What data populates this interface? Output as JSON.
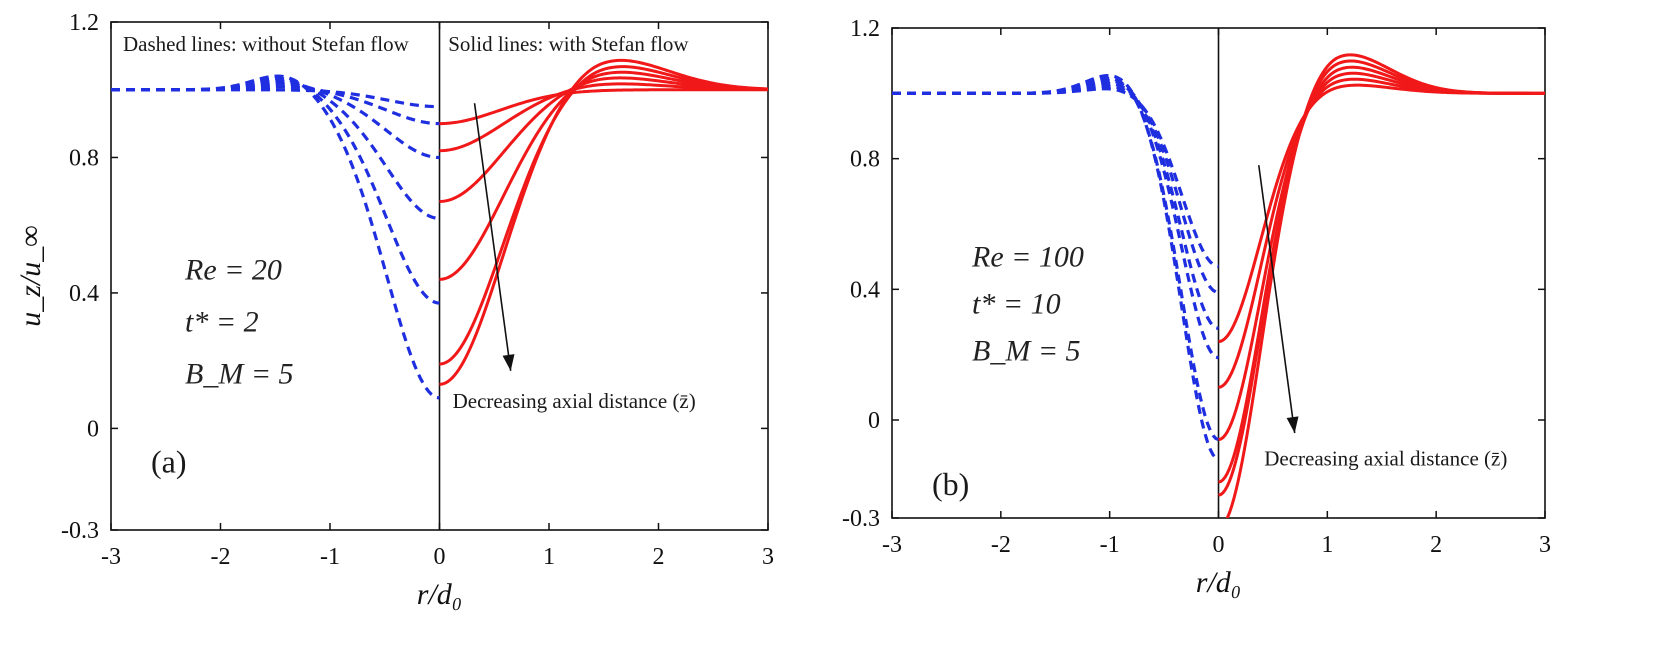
{
  "chart_data": [
    {
      "type": "line",
      "panel": "(a)",
      "xlabel": "r/d₀",
      "ylabel": "u_z/u_∞",
      "xlim": [
        -3,
        3
      ],
      "ylim": [
        -0.3,
        1.2
      ],
      "xticks": [
        "-3",
        "-2",
        "-1",
        "0",
        "1",
        "2",
        "3"
      ],
      "yticks": [
        "1.2",
        "0.8",
        "0.4",
        "0",
        "-0.3"
      ],
      "dashed_annotation": "Dashed lines: without Stefan flow",
      "solid_annotation": "Solid lines: with Stefan flow",
      "arrow_annotation": "Decreasing axial distance (z̄)",
      "params": [
        "Re = 20",
        "t* = 2",
        "B_M = 5"
      ],
      "colors": {
        "dashed": "#1f2fe0",
        "solid": "#f01818"
      },
      "dashed_centerline_values": [
        0.95,
        0.9,
        0.8,
        0.62,
        0.37,
        0.09
      ],
      "dashed_bump_peak": [
        1.0,
        1.01,
        1.02,
        1.03,
        1.04,
        1.05
      ],
      "dashed_bump_x": -1.4,
      "solid_centerline_values": [
        0.9,
        0.82,
        0.67,
        0.44,
        0.19,
        0.13
      ],
      "solid_peak_values": [
        1.0,
        1.02,
        1.04,
        1.06,
        1.08,
        1.1
      ],
      "solid_peak_x": 1.5,
      "far_field": 1.0,
      "x_edge": 3.0
    },
    {
      "type": "line",
      "panel": "(b)",
      "xlabel": "r/d₀",
      "ylabel": "",
      "xlim": [
        -3,
        3
      ],
      "ylim": [
        -0.3,
        1.2
      ],
      "xticks": [
        "-3",
        "-2",
        "-1",
        "0",
        "1",
        "2",
        "3"
      ],
      "yticks": [
        "1.2",
        "0.8",
        "0.4",
        "0",
        "-0.3"
      ],
      "arrow_annotation": "Decreasing axial distance (z̄)",
      "params": [
        "Re = 100",
        "t* = 10",
        "B_M = 5"
      ],
      "colors": {
        "dashed": "#1f2fe0",
        "solid": "#f01818"
      },
      "dashed_centerline_values": [
        0.47,
        0.39,
        0.28,
        0.19,
        -0.06,
        -0.12
      ],
      "dashed_bump_peak": [
        1.02,
        1.03,
        1.04,
        1.05,
        1.06,
        1.07
      ],
      "dashed_bump_x": -0.9,
      "solid_centerline_values": [
        0.24,
        0.1,
        -0.06,
        -0.19,
        -0.23,
        -0.33
      ],
      "solid_peak_values": [
        1.03,
        1.05,
        1.07,
        1.09,
        1.11,
        1.13
      ],
      "solid_peak_x": 1.1,
      "far_field": 1.0,
      "x_edge": 3.0
    }
  ]
}
